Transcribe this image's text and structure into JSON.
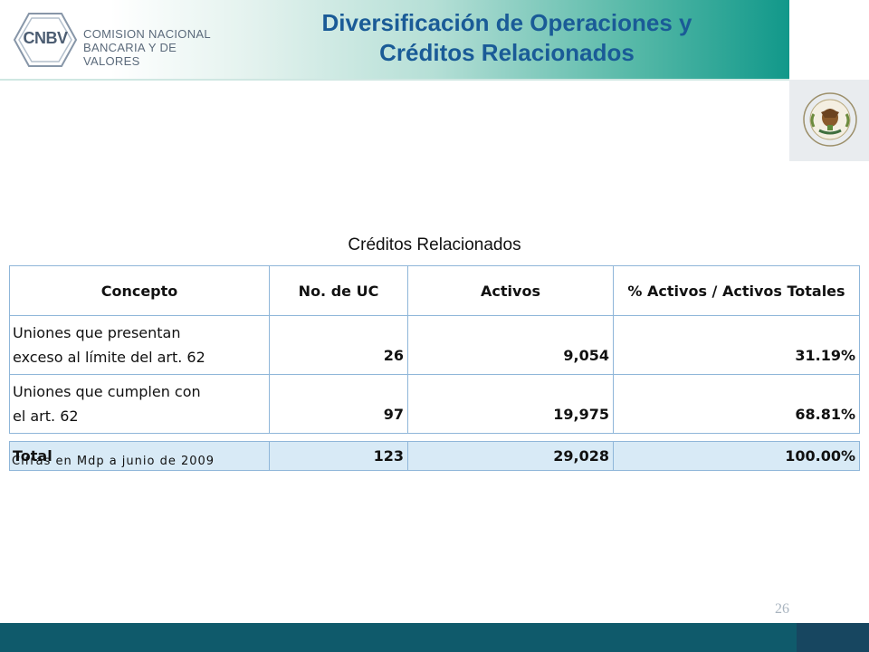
{
  "header": {
    "logo": {
      "mark": "CNBV",
      "name_line1": "COMISION NACIONAL",
      "name_line2": "BANCARIA Y DE VALORES"
    },
    "title_line1": "Diversificación de Operaciones y",
    "title_line2": "Créditos Relacionados",
    "seal_icon": "mexican-coat-of-arms-icon"
  },
  "table": {
    "title": "Créditos Relacionados",
    "columns": [
      "Concepto",
      "No. de UC",
      "Activos",
      "% Activos / Activos Totales"
    ],
    "rows": [
      {
        "concepto_line1": "Uniones que presentan",
        "concepto_line2": "exceso al límite del art. 62",
        "no_uc": "26",
        "activos": "9,054",
        "pct": "31.19%"
      },
      {
        "concepto_line1": "Uniones que cumplen con",
        "concepto_line2": "el art. 62",
        "no_uc": "97",
        "activos": "19,975",
        "pct": "68.81%"
      }
    ],
    "total": {
      "concepto": "Total",
      "no_uc": "123",
      "activos": "29,028",
      "pct": "100.00%"
    },
    "footnote": "Cifras en Mdp a junio de 2009"
  },
  "page_number": "26",
  "colors": {
    "title": "#1a5b97",
    "header_teal": "#11988a",
    "table_border": "#8fb6d9",
    "total_row": "#d8eaf6",
    "footer": "#0f5a6b"
  }
}
